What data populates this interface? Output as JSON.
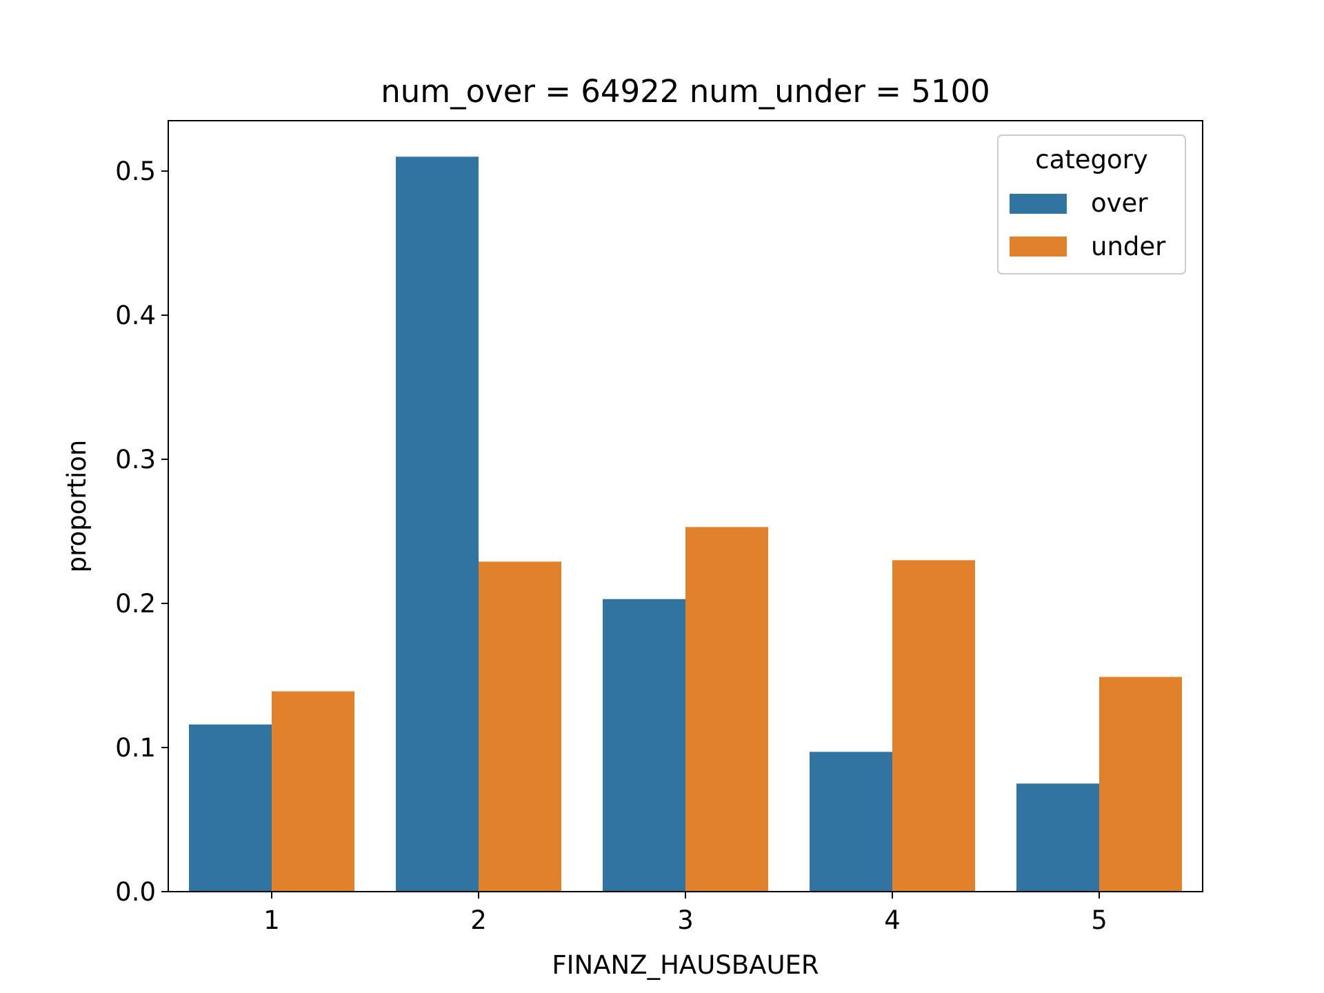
{
  "chart_data": {
    "type": "bar",
    "title": "num_over = 64922  num_under = 5100",
    "xlabel": "FINANZ_HAUSBAUER",
    "ylabel": "proportion",
    "categories": [
      "1",
      "2",
      "3",
      "4",
      "5"
    ],
    "series": [
      {
        "name": "over",
        "color": "#3274a1",
        "values": [
          0.116,
          0.51,
          0.203,
          0.097,
          0.075
        ]
      },
      {
        "name": "under",
        "color": "#e1812c",
        "values": [
          0.139,
          0.229,
          0.253,
          0.23,
          0.149
        ]
      }
    ],
    "ylim": [
      0,
      0.535
    ],
    "yticks": [
      "0.0",
      "0.1",
      "0.2",
      "0.3",
      "0.4",
      "0.5"
    ],
    "grid": false,
    "legend": {
      "title": "category",
      "position": "top-right"
    }
  }
}
